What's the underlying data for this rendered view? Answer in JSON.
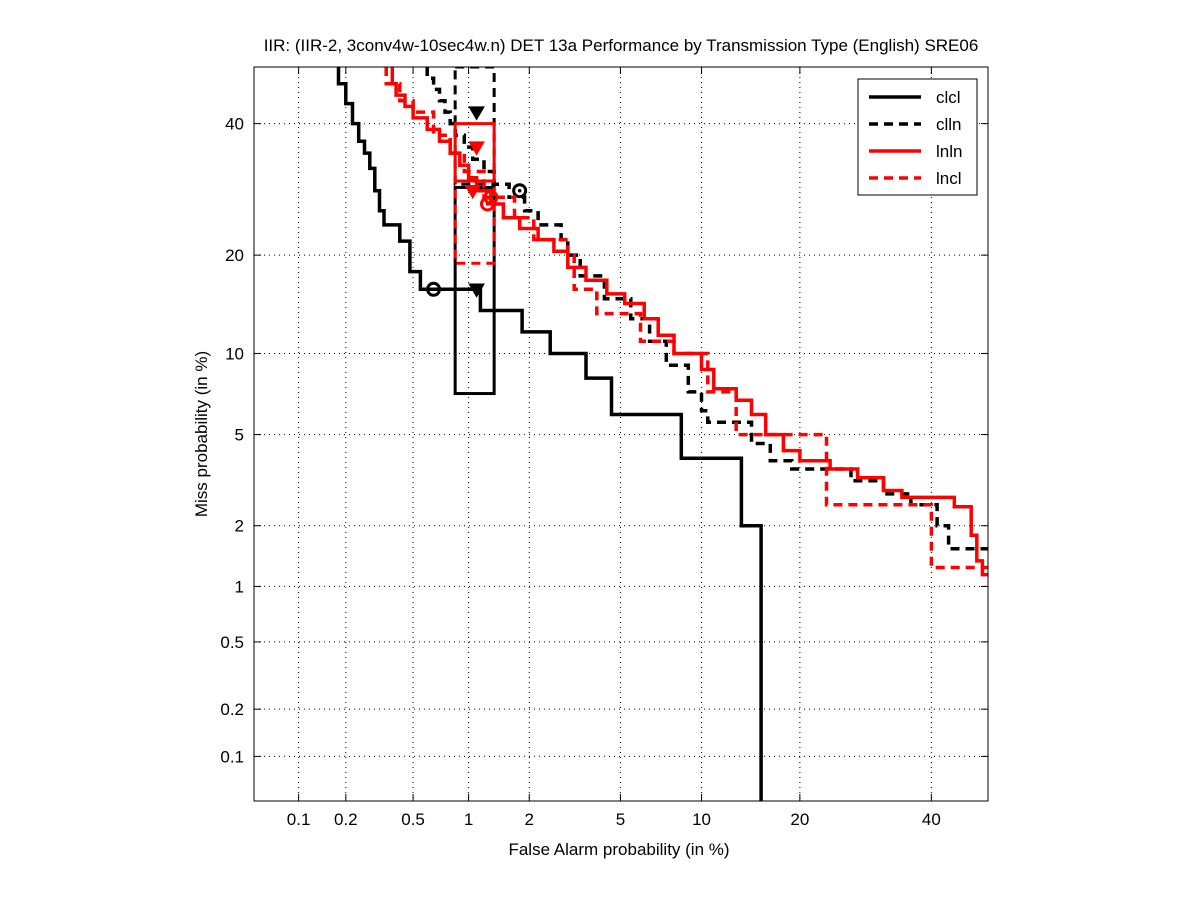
{
  "chart_data": {
    "type": "line",
    "title": "IIR: (IIR-2, 3conv4w-10sec4w.n) DET 13a Performance by Transmission Type (English) SRE06",
    "xlabel": "False Alarm probability (in %)",
    "ylabel": "Miss probability (in %)",
    "scale": "normal-deviate (probit)",
    "xlim": [
      0.05,
      50
    ],
    "ylim": [
      0.05,
      50
    ],
    "x_ticks": [
      0.1,
      0.2,
      0.5,
      1,
      2,
      5,
      10,
      20,
      40
    ],
    "x_tick_labels": [
      "0.1",
      "0.2",
      "0.5",
      "1",
      "2",
      "5",
      "10",
      "20",
      "40"
    ],
    "y_ticks": [
      0.1,
      0.2,
      0.5,
      1,
      2,
      5,
      10,
      20,
      40
    ],
    "y_tick_labels": [
      "0.1",
      "0.2",
      "0.5",
      "1",
      "2",
      "5",
      "10",
      "20",
      "40"
    ],
    "grid": true,
    "legend_position": "top-right",
    "series": [
      {
        "name": "clcl",
        "color": "#000000",
        "dash": "solid",
        "points": [
          [
            0.18,
            50
          ],
          [
            0.18,
            47
          ],
          [
            0.2,
            47
          ],
          [
            0.2,
            43.5
          ],
          [
            0.22,
            43.5
          ],
          [
            0.22,
            40
          ],
          [
            0.24,
            40
          ],
          [
            0.24,
            37
          ],
          [
            0.26,
            37
          ],
          [
            0.26,
            35
          ],
          [
            0.28,
            35
          ],
          [
            0.28,
            32.5
          ],
          [
            0.3,
            32.5
          ],
          [
            0.3,
            29
          ],
          [
            0.32,
            29
          ],
          [
            0.32,
            26
          ],
          [
            0.34,
            26
          ],
          [
            0.34,
            24
          ],
          [
            0.42,
            24
          ],
          [
            0.42,
            21.8
          ],
          [
            0.48,
            21.8
          ],
          [
            0.48,
            18
          ],
          [
            0.55,
            18
          ],
          [
            0.55,
            16
          ],
          [
            1.15,
            16
          ],
          [
            1.15,
            13.8
          ],
          [
            1.85,
            13.8
          ],
          [
            1.85,
            11.8
          ],
          [
            2.5,
            11.8
          ],
          [
            2.5,
            10
          ],
          [
            3.6,
            10
          ],
          [
            3.6,
            8.2
          ],
          [
            4.6,
            8.2
          ],
          [
            4.6,
            6
          ],
          [
            8.5,
            6
          ],
          [
            8.5,
            4
          ],
          [
            13.5,
            4
          ],
          [
            13.5,
            2
          ],
          [
            15.5,
            2
          ],
          [
            15.5,
            0.05
          ]
        ],
        "act_dcf": [
          0.65,
          16
        ],
        "min_dcf": [
          1.1,
          16
        ],
        "ci_box": {
          "x": [
            0.85,
            1.35
          ],
          "y": [
            7.2,
            29.5
          ]
        }
      },
      {
        "name": "clln",
        "color": "#000000",
        "dash": "dashed",
        "points": [
          [
            0.6,
            50
          ],
          [
            0.6,
            48
          ],
          [
            0.65,
            48
          ],
          [
            0.65,
            46
          ],
          [
            0.7,
            46
          ],
          [
            0.7,
            44
          ],
          [
            0.75,
            44
          ],
          [
            0.75,
            42
          ],
          [
            0.8,
            42
          ],
          [
            0.8,
            40
          ],
          [
            0.85,
            40
          ],
          [
            0.85,
            38
          ],
          [
            0.95,
            38
          ],
          [
            0.95,
            36
          ],
          [
            1.05,
            36
          ],
          [
            1.05,
            34
          ],
          [
            1.2,
            34
          ],
          [
            1.2,
            32
          ],
          [
            1.35,
            32
          ],
          [
            1.35,
            30
          ],
          [
            1.6,
            30
          ],
          [
            1.6,
            28
          ],
          [
            1.9,
            28
          ],
          [
            1.9,
            26
          ],
          [
            2.2,
            26
          ],
          [
            2.2,
            24
          ],
          [
            2.8,
            24
          ],
          [
            2.8,
            22
          ],
          [
            3.0,
            22
          ],
          [
            3.0,
            20
          ],
          [
            3.4,
            20
          ],
          [
            3.4,
            17.5
          ],
          [
            4.3,
            17.5
          ],
          [
            4.3,
            15
          ],
          [
            5.5,
            15
          ],
          [
            5.5,
            13
          ],
          [
            6.5,
            13
          ],
          [
            6.5,
            11
          ],
          [
            7.5,
            11
          ],
          [
            7.5,
            9.1
          ],
          [
            9.0,
            9.1
          ],
          [
            9.0,
            7.3
          ],
          [
            10.0,
            7.3
          ],
          [
            10.0,
            6.2
          ],
          [
            10.5,
            6.2
          ],
          [
            10.5,
            5.6
          ],
          [
            14.5,
            5.6
          ],
          [
            14.5,
            4.6
          ],
          [
            16.5,
            4.6
          ],
          [
            16.5,
            3.9
          ],
          [
            19.0,
            3.9
          ],
          [
            19.0,
            3.6
          ],
          [
            27.0,
            3.6
          ],
          [
            27.0,
            3.2
          ],
          [
            32.0,
            3.2
          ],
          [
            32.0,
            2.8
          ],
          [
            36.5,
            2.8
          ],
          [
            36.5,
            2.5
          ],
          [
            41.0,
            2.5
          ],
          [
            41.0,
            2.0
          ],
          [
            43.0,
            2.0
          ],
          [
            43.0,
            1.55
          ],
          [
            50,
            1.55
          ]
        ],
        "act_dcf": [
          1.8,
          29
        ],
        "min_dcf": [
          1.1,
          42
        ],
        "ci_box": {
          "x": [
            0.85,
            1.35
          ],
          "y": [
            30,
            50
          ]
        }
      },
      {
        "name": "lnln",
        "color": "#ff0000",
        "dash": "solid",
        "points": [
          [
            0.38,
            50
          ],
          [
            0.38,
            47
          ],
          [
            0.4,
            47
          ],
          [
            0.4,
            45
          ],
          [
            0.45,
            45
          ],
          [
            0.45,
            43
          ],
          [
            0.5,
            43
          ],
          [
            0.5,
            41
          ],
          [
            0.6,
            41
          ],
          [
            0.6,
            39
          ],
          [
            0.7,
            39
          ],
          [
            0.7,
            37
          ],
          [
            0.8,
            37
          ],
          [
            0.8,
            35
          ],
          [
            0.9,
            35
          ],
          [
            0.9,
            33
          ],
          [
            1.0,
            33
          ],
          [
            1.0,
            31
          ],
          [
            1.1,
            31
          ],
          [
            1.1,
            29
          ],
          [
            1.3,
            29
          ],
          [
            1.3,
            27
          ],
          [
            1.5,
            27
          ],
          [
            1.5,
            25
          ],
          [
            1.8,
            25
          ],
          [
            1.8,
            23.5
          ],
          [
            2.2,
            23.5
          ],
          [
            2.2,
            22
          ],
          [
            2.6,
            22
          ],
          [
            2.6,
            20.5
          ],
          [
            3.0,
            20.5
          ],
          [
            3.0,
            18.5
          ],
          [
            3.6,
            18.5
          ],
          [
            3.6,
            17
          ],
          [
            4.4,
            17
          ],
          [
            4.4,
            15.5
          ],
          [
            5.2,
            15.5
          ],
          [
            5.2,
            14.5
          ],
          [
            6.2,
            14.5
          ],
          [
            6.2,
            13
          ],
          [
            7.0,
            13
          ],
          [
            7.0,
            11.5
          ],
          [
            8.0,
            11.5
          ],
          [
            8.0,
            10
          ],
          [
            10.0,
            10
          ],
          [
            10.0,
            8.8
          ],
          [
            11.0,
            8.8
          ],
          [
            11.0,
            7.5
          ],
          [
            13.0,
            7.5
          ],
          [
            13.0,
            6.8
          ],
          [
            14.5,
            6.8
          ],
          [
            14.5,
            6.0
          ],
          [
            16.0,
            6.0
          ],
          [
            16.0,
            5.0
          ],
          [
            18.0,
            5.0
          ],
          [
            18.0,
            4.3
          ],
          [
            20.0,
            4.3
          ],
          [
            20.0,
            3.9
          ],
          [
            24.0,
            3.9
          ],
          [
            24.0,
            3.6
          ],
          [
            28.0,
            3.6
          ],
          [
            28.0,
            3.3
          ],
          [
            32.0,
            3.3
          ],
          [
            32.0,
            2.9
          ],
          [
            35.0,
            2.9
          ],
          [
            35.0,
            2.7
          ],
          [
            44.0,
            2.7
          ],
          [
            44.0,
            2.45
          ],
          [
            47.0,
            2.45
          ],
          [
            47.0,
            1.8
          ],
          [
            48.0,
            1.8
          ],
          [
            48.0,
            1.35
          ],
          [
            49.0,
            1.35
          ],
          [
            49.0,
            1.15
          ],
          [
            50,
            1.15
          ]
        ],
        "act_dcf": [
          1.3,
          28
        ],
        "min_dcf": [
          1.05,
          29
        ],
        "ci_box": {
          "x": [
            0.85,
            1.35
          ],
          "y": [
            30.5,
            40
          ]
        }
      },
      {
        "name": "lncl",
        "color": "#ff0000",
        "dash": "dashed",
        "points": [
          [
            0.35,
            50
          ],
          [
            0.35,
            47
          ],
          [
            0.42,
            47
          ],
          [
            0.42,
            44
          ],
          [
            0.5,
            44
          ],
          [
            0.5,
            42
          ],
          [
            0.65,
            42
          ],
          [
            0.65,
            38
          ],
          [
            0.8,
            38
          ],
          [
            0.8,
            35
          ],
          [
            0.95,
            35
          ],
          [
            0.95,
            32
          ],
          [
            1.2,
            32
          ],
          [
            1.2,
            28
          ],
          [
            1.7,
            28
          ],
          [
            1.7,
            25
          ],
          [
            2.1,
            25
          ],
          [
            2.1,
            22
          ],
          [
            3.0,
            22
          ],
          [
            3.0,
            20
          ],
          [
            3.2,
            20
          ],
          [
            3.2,
            16
          ],
          [
            4.0,
            16
          ],
          [
            4.0,
            13.5
          ],
          [
            6.0,
            13.5
          ],
          [
            6.0,
            11
          ],
          [
            8.0,
            11
          ],
          [
            8.0,
            10
          ],
          [
            10.5,
            10
          ],
          [
            10.5,
            7.3
          ],
          [
            13.0,
            7.3
          ],
          [
            13.0,
            5.0
          ],
          [
            23.5,
            5.0
          ],
          [
            23.5,
            2.5
          ],
          [
            40.0,
            2.5
          ],
          [
            40.0,
            1.25
          ],
          [
            44.0,
            1.25
          ],
          [
            44.0,
            1.25
          ],
          [
            50,
            1.25
          ]
        ],
        "act_dcf": [
          1.25,
          27
        ],
        "min_dcf": [
          1.1,
          36
        ],
        "ci_box": {
          "x": [
            0.85,
            1.35
          ],
          "y": [
            19,
            30.5
          ]
        }
      }
    ]
  }
}
